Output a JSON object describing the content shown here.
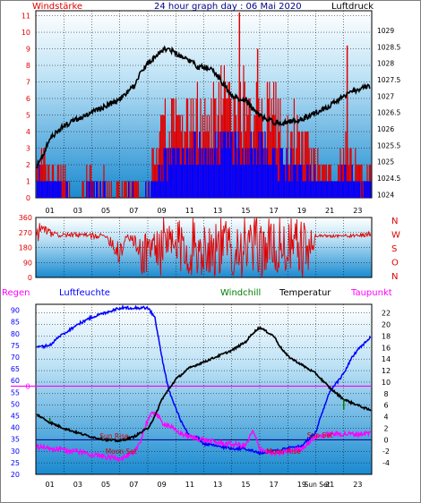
{
  "colors": {
    "wind": "#e00000",
    "pressure": "#000000",
    "direction": "#e00000",
    "humidity": "#0000ff",
    "windchill": "#008000",
    "temperature": "#000000",
    "dewpoint": "#ff00ff",
    "rain": "#ff00ff",
    "grid": "#000000",
    "plot_bg_top": "#ffffff",
    "plot_bg_bottom": "#1a8ad0"
  },
  "chart_data": [
    {
      "type": "bar",
      "title": "24 hour graph day : 06 Mai 2020",
      "left_label": "Windstärke",
      "right_label": "Luftdruck",
      "x_ticks": [
        "01",
        "03",
        "05",
        "07",
        "09",
        "11",
        "13",
        "15",
        "17",
        "19",
        "21",
        "23"
      ],
      "y_left_ticks": [
        "0",
        "1",
        "2",
        "3",
        "4",
        "5",
        "6",
        "7",
        "8",
        "9",
        "10",
        "11"
      ],
      "y_right_ticks": [
        "1024",
        "1024.5",
        "1025",
        "1025.5",
        "1026",
        "1026.5",
        "1027",
        "1027.5",
        "1028",
        "1028.5",
        "1029"
      ],
      "ylim_left": [
        0,
        11.3
      ],
      "ylim_right": [
        1023.9,
        1029.6
      ],
      "wind_profile": [
        [
          0.0,
          1.5,
          3.5
        ],
        [
          0.5,
          1.6,
          3.8
        ],
        [
          1.0,
          0.2,
          2.0
        ],
        [
          1.5,
          0.8,
          3.2
        ],
        [
          2.0,
          0.1,
          1.9
        ],
        [
          2.5,
          0.0,
          0.5
        ],
        [
          3.0,
          0.0,
          0.2
        ],
        [
          3.5,
          0.2,
          1.8
        ],
        [
          4.0,
          0.3,
          1.9
        ],
        [
          4.5,
          0.2,
          1.8
        ],
        [
          5.0,
          0.1,
          1.5
        ],
        [
          5.5,
          0.0,
          0.3
        ],
        [
          6.0,
          0.0,
          1.0
        ],
        [
          6.5,
          0.0,
          2.0
        ],
        [
          7.0,
          0.0,
          1.9
        ],
        [
          7.5,
          0.0,
          0.3
        ],
        [
          8.0,
          0.0,
          2.0
        ],
        [
          8.5,
          1.0,
          3.5
        ],
        [
          9.0,
          2.0,
          5.5
        ],
        [
          9.5,
          2.5,
          6.0
        ],
        [
          10.0,
          3.0,
          6.5
        ],
        [
          10.5,
          2.5,
          6.0
        ],
        [
          11.0,
          3.0,
          6.5
        ],
        [
          11.5,
          3.0,
          7.0
        ],
        [
          12.0,
          3.0,
          6.5
        ],
        [
          12.5,
          2.8,
          7.5
        ],
        [
          13.0,
          3.0,
          8.0
        ],
        [
          13.5,
          2.8,
          8.5
        ],
        [
          14.0,
          3.0,
          8.0
        ],
        [
          14.5,
          2.5,
          8.5
        ],
        [
          15.0,
          2.5,
          8.0
        ],
        [
          15.5,
          2.5,
          7.5
        ],
        [
          16.0,
          2.5,
          7.5
        ],
        [
          16.5,
          2.5,
          7.0
        ],
        [
          17.0,
          2.5,
          7.0
        ],
        [
          17.5,
          2.0,
          6.5
        ],
        [
          18.0,
          2.0,
          6.0
        ],
        [
          18.5,
          1.8,
          5.5
        ],
        [
          19.0,
          1.5,
          5.0
        ],
        [
          19.5,
          1.2,
          4.0
        ],
        [
          20.0,
          1.0,
          3.0
        ],
        [
          20.5,
          1.0,
          2.5
        ],
        [
          21.0,
          0.8,
          2.2
        ],
        [
          21.5,
          0.5,
          2.0
        ],
        [
          22.0,
          1.5,
          5.5
        ],
        [
          22.5,
          1.0,
          3.5
        ],
        [
          23.0,
          0.5,
          2.5
        ],
        [
          23.5,
          0.5,
          2.0
        ],
        [
          24.0,
          0.5,
          2.0
        ]
      ],
      "pressure": [
        [
          0.0,
          1024.8
        ],
        [
          0.5,
          1025.2
        ],
        [
          1.0,
          1025.7
        ],
        [
          2.0,
          1026.1
        ],
        [
          3.0,
          1026.3
        ],
        [
          4.0,
          1026.5
        ],
        [
          5.0,
          1026.7
        ],
        [
          6.0,
          1026.9
        ],
        [
          7.0,
          1027.3
        ],
        [
          7.5,
          1027.7
        ],
        [
          8.0,
          1028.0
        ],
        [
          8.5,
          1028.2
        ],
        [
          9.0,
          1028.4
        ],
        [
          9.5,
          1028.45
        ],
        [
          10.0,
          1028.3
        ],
        [
          11.0,
          1028.1
        ],
        [
          11.5,
          1027.9
        ],
        [
          12.0,
          1027.9
        ],
        [
          12.5,
          1027.85
        ],
        [
          13.0,
          1027.6
        ],
        [
          13.5,
          1027.3
        ],
        [
          14.0,
          1027.0
        ],
        [
          14.5,
          1026.9
        ],
        [
          15.0,
          1026.9
        ],
        [
          15.5,
          1026.6
        ],
        [
          16.0,
          1026.4
        ],
        [
          17.0,
          1026.2
        ],
        [
          18.0,
          1026.2
        ],
        [
          19.0,
          1026.3
        ],
        [
          20.0,
          1026.5
        ],
        [
          21.0,
          1026.7
        ],
        [
          22.0,
          1027.0
        ],
        [
          23.0,
          1027.2
        ],
        [
          24.0,
          1027.3
        ]
      ]
    },
    {
      "type": "line",
      "y_ticks": [
        "0",
        "90",
        "180",
        "270",
        "360"
      ],
      "compass": [
        "N",
        "W",
        "S",
        "O",
        "N"
      ],
      "ylim": [
        0,
        360
      ],
      "direction_profile": [
        [
          0.0,
          150,
          340
        ],
        [
          0.3,
          200,
          355
        ],
        [
          0.6,
          260,
          320
        ],
        [
          1.0,
          240,
          290
        ],
        [
          1.5,
          240,
          270
        ],
        [
          2.0,
          240,
          270
        ],
        [
          3.0,
          240,
          270
        ],
        [
          4.0,
          230,
          270
        ],
        [
          5.0,
          240,
          260
        ],
        [
          6.0,
          50,
          260
        ],
        [
          6.5,
          240,
          260
        ],
        [
          7.0,
          180,
          260
        ],
        [
          7.5,
          0,
          250
        ],
        [
          8.0,
          20,
          340
        ],
        [
          8.5,
          0,
          360
        ],
        [
          9.0,
          0,
          360
        ],
        [
          10.0,
          0,
          360
        ],
        [
          11.0,
          0,
          360
        ],
        [
          12.0,
          0,
          360
        ],
        [
          13.0,
          0,
          360
        ],
        [
          14.0,
          0,
          360
        ],
        [
          15.0,
          0,
          360
        ],
        [
          16.0,
          0,
          360
        ],
        [
          17.0,
          0,
          360
        ],
        [
          18.0,
          0,
          360
        ],
        [
          19.0,
          0,
          360
        ],
        [
          19.5,
          0,
          300
        ],
        [
          20.0,
          240,
          260
        ],
        [
          21.0,
          240,
          260
        ],
        [
          22.0,
          240,
          260
        ],
        [
          23.0,
          240,
          260
        ],
        [
          24.0,
          240,
          290
        ]
      ]
    },
    {
      "type": "line",
      "labels": {
        "rain": "Regen",
        "humidity": "Luftfeuchte",
        "windchill": "Windchill",
        "temperature": "Temperatur",
        "dewpoint": "Taupunkt"
      },
      "x_ticks": [
        "01",
        "03",
        "05",
        "07",
        "09",
        "11",
        "13",
        "15",
        "17",
        "19",
        "21",
        "23"
      ],
      "y_left_ticks": [
        "20",
        "25",
        "30",
        "35",
        "40",
        "45",
        "50",
        "55",
        "60",
        "65",
        "70",
        "75",
        "80",
        "85",
        "90"
      ],
      "y_right_ticks": [
        "-4",
        "-2",
        "0",
        "2",
        "4",
        "6",
        "8",
        "10",
        "12",
        "14",
        "16",
        "18",
        "20",
        "22"
      ],
      "rain_marker": "0",
      "ylim_left": [
        20,
        92.5
      ],
      "ylim_right": [
        -6,
        23.5
      ],
      "humidity": [
        [
          0.0,
          74
        ],
        [
          1.0,
          75
        ],
        [
          1.5,
          78
        ],
        [
          2.0,
          80
        ],
        [
          3.0,
          84
        ],
        [
          4.0,
          87
        ],
        [
          5.0,
          89
        ],
        [
          6.0,
          91
        ],
        [
          7.0,
          91
        ],
        [
          8.0,
          91
        ],
        [
          8.5,
          87
        ],
        [
          9.0,
          70
        ],
        [
          9.5,
          56
        ],
        [
          10.0,
          48
        ],
        [
          10.5,
          41
        ],
        [
          11.0,
          36
        ],
        [
          11.5,
          36
        ],
        [
          12.0,
          33
        ],
        [
          13.0,
          32
        ],
        [
          14.0,
          31
        ],
        [
          15.0,
          31
        ],
        [
          16.0,
          29
        ],
        [
          17.0,
          30
        ],
        [
          18.0,
          31
        ],
        [
          19.0,
          32
        ],
        [
          20.0,
          38
        ],
        [
          20.5,
          47
        ],
        [
          21.0,
          55
        ],
        [
          21.5,
          59
        ],
        [
          22.0,
          63
        ],
        [
          22.5,
          69
        ],
        [
          23.0,
          73
        ],
        [
          24.0,
          79
        ]
      ],
      "temperature": [
        [
          0.0,
          4.5
        ],
        [
          1.0,
          3.0
        ],
        [
          2.0,
          2.0
        ],
        [
          3.0,
          1.2
        ],
        [
          4.0,
          0.5
        ],
        [
          5.0,
          0.0
        ],
        [
          6.0,
          -0.2
        ],
        [
          7.0,
          0.5
        ],
        [
          8.0,
          2.0
        ],
        [
          8.5,
          4.0
        ],
        [
          9.0,
          7.0
        ],
        [
          10.0,
          10.5
        ],
        [
          11.0,
          12.5
        ],
        [
          12.0,
          13.5
        ],
        [
          13.0,
          14.5
        ],
        [
          14.0,
          15.5
        ],
        [
          15.0,
          17.0
        ],
        [
          15.5,
          18.5
        ],
        [
          16.0,
          19.5
        ],
        [
          17.0,
          18.0
        ],
        [
          17.5,
          16.0
        ],
        [
          18.0,
          14.5
        ],
        [
          19.0,
          13.0
        ],
        [
          20.0,
          11.5
        ],
        [
          21.0,
          9.0
        ],
        [
          21.5,
          8.0
        ],
        [
          22.0,
          7.0
        ],
        [
          23.0,
          6.0
        ],
        [
          24.0,
          5.0
        ]
      ],
      "dewpoint": [
        [
          0.0,
          -1.2
        ],
        [
          1.0,
          -1.5
        ],
        [
          2.0,
          -1.8
        ],
        [
          3.0,
          -2.0
        ],
        [
          4.0,
          -2.5
        ],
        [
          5.0,
          -3.0
        ],
        [
          6.0,
          -3.2
        ],
        [
          7.0,
          -2.5
        ],
        [
          7.5,
          0.0
        ],
        [
          8.0,
          3.5
        ],
        [
          8.5,
          5.0
        ],
        [
          9.0,
          3.0
        ],
        [
          9.5,
          2.5
        ],
        [
          10.0,
          1.5
        ],
        [
          11.0,
          0.5
        ],
        [
          12.0,
          0.0
        ],
        [
          13.0,
          -0.5
        ],
        [
          14.0,
          -0.8
        ],
        [
          15.0,
          -1.0
        ],
        [
          15.5,
          1.5
        ],
        [
          16.0,
          -1.5
        ],
        [
          17.0,
          -2.5
        ],
        [
          18.0,
          -2.0
        ],
        [
          19.0,
          -1.5
        ],
        [
          20.0,
          0.5
        ],
        [
          21.0,
          1.0
        ],
        [
          22.0,
          1.0
        ],
        [
          23.0,
          1.0
        ],
        [
          24.0,
          1.2
        ]
      ],
      "windchill": [
        [
          0.0,
          4.5
        ],
        [
          1.0,
          2.8
        ],
        [
          3.0,
          1.0
        ],
        [
          8.0,
          2.0
        ],
        [
          20.0,
          11.5
        ],
        [
          21.5,
          7.5
        ],
        [
          22.0,
          6.5
        ],
        [
          24.0,
          5.0
        ]
      ],
      "events": [
        {
          "label": "Sun Rise",
          "x": 5.6,
          "y": 0.2,
          "color": "#cc0000"
        },
        {
          "label": "Moon Set",
          "x": 6.1,
          "y": -2.4,
          "color": "#cc0000"
        },
        {
          "label": "Sun Set",
          "x": 20.3,
          "y": 0.4,
          "color": "#cc0000"
        },
        {
          "label": "Moon Rise",
          "x": 17.7,
          "y": -2.4,
          "color": "#cc0000"
        }
      ],
      "x_event_ticks": [
        "Sun Set",
        "Moon Rise"
      ]
    }
  ]
}
